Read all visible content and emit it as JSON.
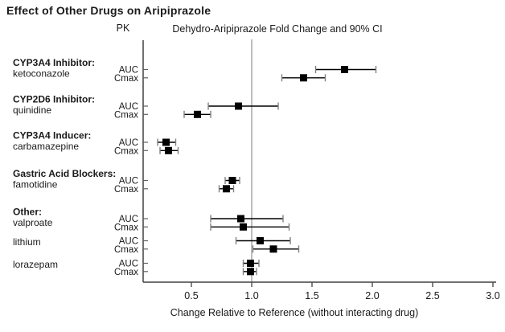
{
  "title": "Effect of Other Drugs on Aripiprazole",
  "chart_data": {
    "type": "scatter",
    "subtype": "forest-plot",
    "pk_header": "PK",
    "value_header": "Dehydro-Aripiprazole Fold Change and 90% CI",
    "xlabel": "Change Relative to Reference (without interacting drug)",
    "x_ticks": [
      0.5,
      1.0,
      1.5,
      2.0,
      2.5,
      3.0
    ],
    "xlim": [
      0.1,
      3.0
    ],
    "reference_value": 1.0,
    "ci_level": "90% CI",
    "row_labels": [
      "AUC",
      "Cmax"
    ],
    "groups": [
      {
        "heading": "CYP3A4 Inhibitor:",
        "drug": "ketoconazole",
        "auc": {
          "est": 1.77,
          "lo": 1.53,
          "hi": 2.03
        },
        "cmax": {
          "est": 1.43,
          "lo": 1.25,
          "hi": 1.61
        }
      },
      {
        "heading": "CYP2D6 Inhibitor:",
        "drug": "quinidine",
        "auc": {
          "est": 0.89,
          "lo": 0.64,
          "hi": 1.22
        },
        "cmax": {
          "est": 0.55,
          "lo": 0.44,
          "hi": 0.66
        }
      },
      {
        "heading": "CYP3A4 Inducer:",
        "drug": "carbamazepine",
        "auc": {
          "est": 0.29,
          "lo": 0.22,
          "hi": 0.37
        },
        "cmax": {
          "est": 0.31,
          "lo": 0.24,
          "hi": 0.39
        }
      },
      {
        "heading": "Gastric Acid Blockers:",
        "drug": "famotidine",
        "auc": {
          "est": 0.84,
          "lo": 0.78,
          "hi": 0.9
        },
        "cmax": {
          "est": 0.79,
          "lo": 0.73,
          "hi": 0.85
        }
      },
      {
        "heading": "Other:",
        "drug": "valproate",
        "auc": {
          "est": 0.91,
          "lo": 0.66,
          "hi": 1.26
        },
        "cmax": {
          "est": 0.93,
          "lo": 0.66,
          "hi": 1.31
        }
      },
      {
        "heading": null,
        "drug": "lithium",
        "auc": {
          "est": 1.07,
          "lo": 0.87,
          "hi": 1.32
        },
        "cmax": {
          "est": 1.18,
          "lo": 1.01,
          "hi": 1.39
        }
      },
      {
        "heading": null,
        "drug": "lorazepam",
        "auc": {
          "est": 0.99,
          "lo": 0.93,
          "hi": 1.06
        },
        "cmax": {
          "est": 0.99,
          "lo": 0.93,
          "hi": 1.04
        }
      }
    ]
  },
  "colors": {
    "background": "#ffffff",
    "text": "#1a1a1a",
    "axis": "#404040",
    "ci_line": "#000000",
    "ci_cap": "#808080",
    "marker": "#000000",
    "reference_line": "#bcbcbc"
  }
}
